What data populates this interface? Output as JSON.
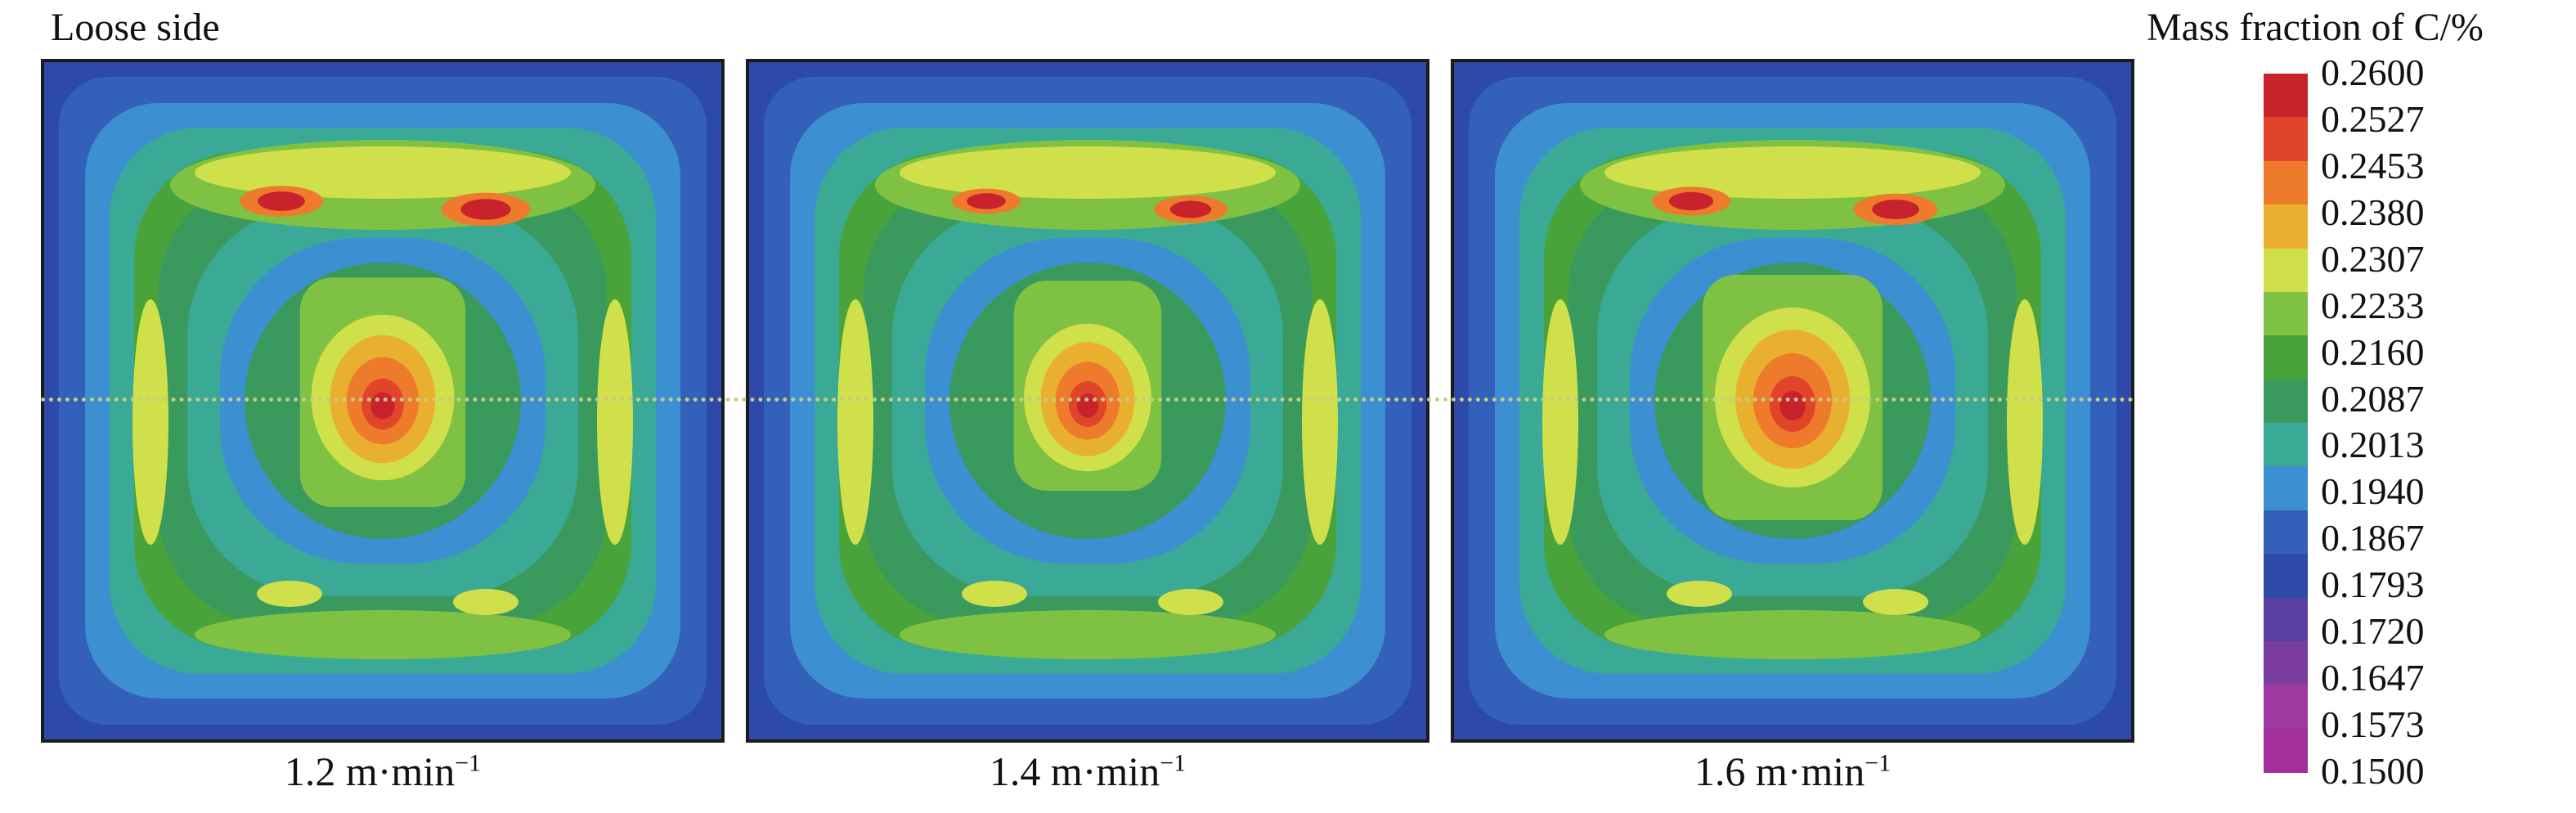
{
  "figure": {
    "side_label": "Loose side",
    "panels": [
      {
        "caption_value": "1.2 m·min",
        "caption_exp": "−1",
        "center_strength": 0.92,
        "corner_red": 0.85
      },
      {
        "caption_value": "1.4 m·min",
        "caption_exp": "−1",
        "center_strength": 0.82,
        "corner_red": 0.7
      },
      {
        "caption_value": "1.6 m·min",
        "caption_exp": "−1",
        "center_strength": 1.0,
        "corner_red": 0.8
      }
    ]
  },
  "legend": {
    "title": "Mass fraction of C/%",
    "levels": [
      "0.2600",
      "0.2527",
      "0.2453",
      "0.2380",
      "0.2307",
      "0.2233",
      "0.2160",
      "0.2087",
      "0.2013",
      "0.1940",
      "0.1867",
      "0.1793",
      "0.1720",
      "0.1647",
      "0.1573",
      "0.1500"
    ],
    "colors": [
      "#c8232c",
      "#e0452a",
      "#ee7b2b",
      "#e9b030",
      "#cfe04a",
      "#7fc243",
      "#49a33b",
      "#3a9a5e",
      "#3aaa96",
      "#3c8fd0",
      "#3361b9",
      "#2e4aa8",
      "#5a3fa0",
      "#7b3c9f",
      "#a03aa0",
      "#a32f9a"
    ]
  }
}
